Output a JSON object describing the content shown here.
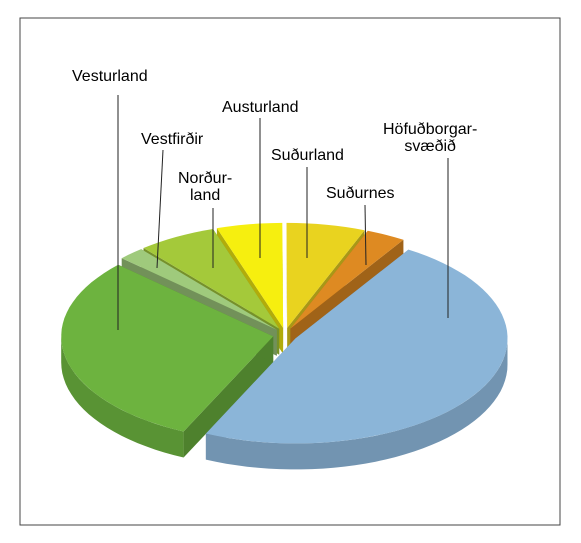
{
  "chart_data": {
    "type": "pie3d",
    "categories": [
      "Vesturland",
      "Vestfirðir",
      "Norður-\nland",
      "Austurland",
      "Suðurland",
      "Suðurnes",
      "Höfuðborgar-\nsvæðið"
    ],
    "values": [
      30,
      2,
      6,
      5,
      6,
      3,
      48
    ],
    "colors": [
      "#6db33f",
      "#9fca7c",
      "#a4c93a",
      "#f6ef0f",
      "#e9d31f",
      "#de8a22",
      "#8bb5d8"
    ]
  }
}
